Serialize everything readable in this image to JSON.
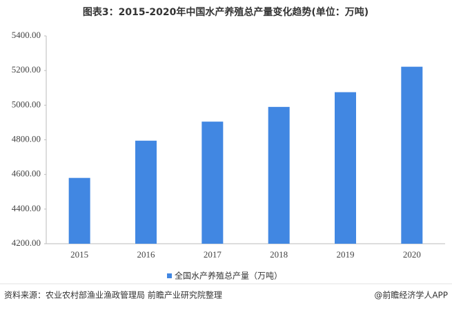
{
  "chart_data": {
    "type": "bar",
    "title": "图表3：2015-2020年中国水产养殖总产量变化趋势(单位：万吨)",
    "categories": [
      "2015",
      "2016",
      "2017",
      "2018",
      "2019",
      "2020"
    ],
    "series": [
      {
        "name": "全国水产养殖总产量（万吨）",
        "color": "#4187e2",
        "values": [
          4580,
          4795,
          4905,
          4990,
          5075,
          5222
        ]
      }
    ],
    "ylim": [
      4200,
      5400
    ],
    "yticks": [
      {
        "value": 4200,
        "label": "4200.00"
      },
      {
        "value": 4400,
        "label": "4400.00"
      },
      {
        "value": 4600,
        "label": "4600.00"
      },
      {
        "value": 4800,
        "label": "4800.00"
      },
      {
        "value": 5000,
        "label": "5000.00"
      },
      {
        "value": 5200,
        "label": "5200.00"
      },
      {
        "value": 5400,
        "label": "5400.00"
      }
    ],
    "legend": "bottom",
    "source": "资料来源：农业农村部渔业渔政管理局 前瞻产业研究院整理",
    "credit": "@前瞻经济学人APP"
  }
}
